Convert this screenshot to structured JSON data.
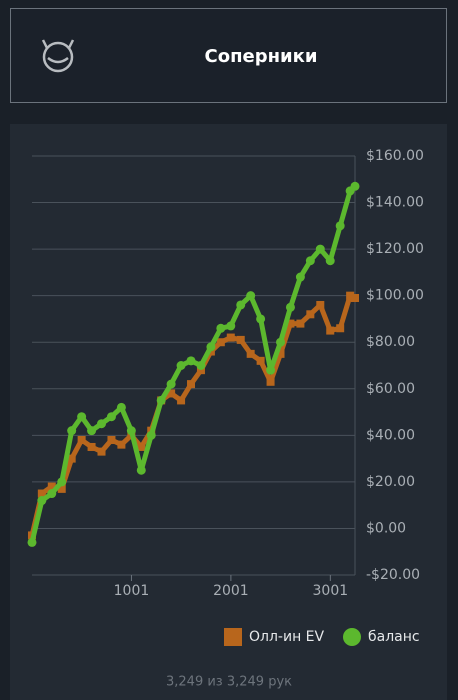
{
  "header": {
    "title": "Соперники"
  },
  "chart_data": {
    "type": "line",
    "x": [
      1,
      100,
      200,
      300,
      400,
      500,
      600,
      700,
      800,
      900,
      1000,
      1100,
      1200,
      1300,
      1400,
      1500,
      1600,
      1700,
      1800,
      1900,
      2000,
      2100,
      2200,
      2300,
      2400,
      2500,
      2600,
      2700,
      2800,
      2900,
      3000,
      3100,
      3200,
      3249
    ],
    "series": [
      {
        "name": "Олл-ин EV",
        "color": "#b8661c",
        "marker": "square",
        "values": [
          -3,
          15,
          18,
          17,
          30,
          38,
          35,
          33,
          38,
          36,
          40,
          35,
          42,
          55,
          58,
          55,
          62,
          68,
          76,
          80,
          82,
          81,
          75,
          72,
          63,
          75,
          88,
          88,
          92,
          96,
          85,
          86,
          100,
          99
        ]
      },
      {
        "name": "баланс",
        "color": "#5cb82e",
        "marker": "circle",
        "values": [
          -6,
          12,
          15,
          20,
          42,
          48,
          42,
          45,
          48,
          52,
          42,
          25,
          40,
          55,
          62,
          70,
          72,
          70,
          78,
          86,
          87,
          96,
          100,
          90,
          68,
          80,
          95,
          108,
          115,
          120,
          115,
          130,
          145,
          147
        ]
      }
    ],
    "xlim": [
      1,
      3249
    ],
    "xticks": [
      1001,
      2001,
      3001
    ],
    "ylim": [
      -20,
      160
    ],
    "yticks": [
      {
        "value": -20,
        "label": "-$20.00"
      },
      {
        "value": 0,
        "label": "$0.00"
      },
      {
        "value": 20,
        "label": "$20.00"
      },
      {
        "value": 40,
        "label": "$40.00"
      },
      {
        "value": 60,
        "label": "$60.00"
      },
      {
        "value": 80,
        "label": "$80.00"
      },
      {
        "value": 100,
        "label": "$100.00"
      },
      {
        "value": 120,
        "label": "$120.00"
      },
      {
        "value": 140,
        "label": "$140.00"
      },
      {
        "value": 160,
        "label": "$160.00"
      }
    ],
    "grid": true,
    "legend": "bottom-right"
  },
  "footer": {
    "text": "3,249 из 3,249 рук"
  }
}
